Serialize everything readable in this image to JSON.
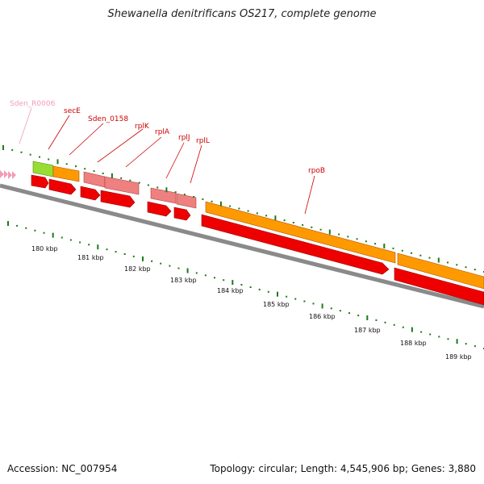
{
  "title": "Shewanella denitrificans OS217, complete genome",
  "footer": {
    "accession": "Accession: NC_007954",
    "summary": "Topology: circular; Length: 4,545,906 bp; Genes: 3,880"
  },
  "colors": {
    "label_red": "#cc0000",
    "label_pink": "#f29cb6",
    "cds_red": "#ee0000",
    "orange": "#ff9900",
    "salmon": "#ee8080",
    "lime": "#99dd33",
    "tick_green": "#1b7a1b",
    "backbone": "#8a8a8a"
  },
  "genes": [
    {
      "name": "Sden_R0006",
      "color": "pink"
    },
    {
      "name": "secE",
      "color": "red"
    },
    {
      "name": "Sden_0158",
      "color": "red"
    },
    {
      "name": "rplK",
      "color": "red"
    },
    {
      "name": "rplA",
      "color": "red"
    },
    {
      "name": "rplJ",
      "color": "red"
    },
    {
      "name": "rplL",
      "color": "red"
    },
    {
      "name": "rpoB",
      "color": "red"
    }
  ],
  "kbp_labels": [
    "180 kbp",
    "181 kbp",
    "182 kbp",
    "183 kbp",
    "184 kbp",
    "185 kbp",
    "186 kbp",
    "187 kbp",
    "188 kbp",
    "189 kbp"
  ]
}
